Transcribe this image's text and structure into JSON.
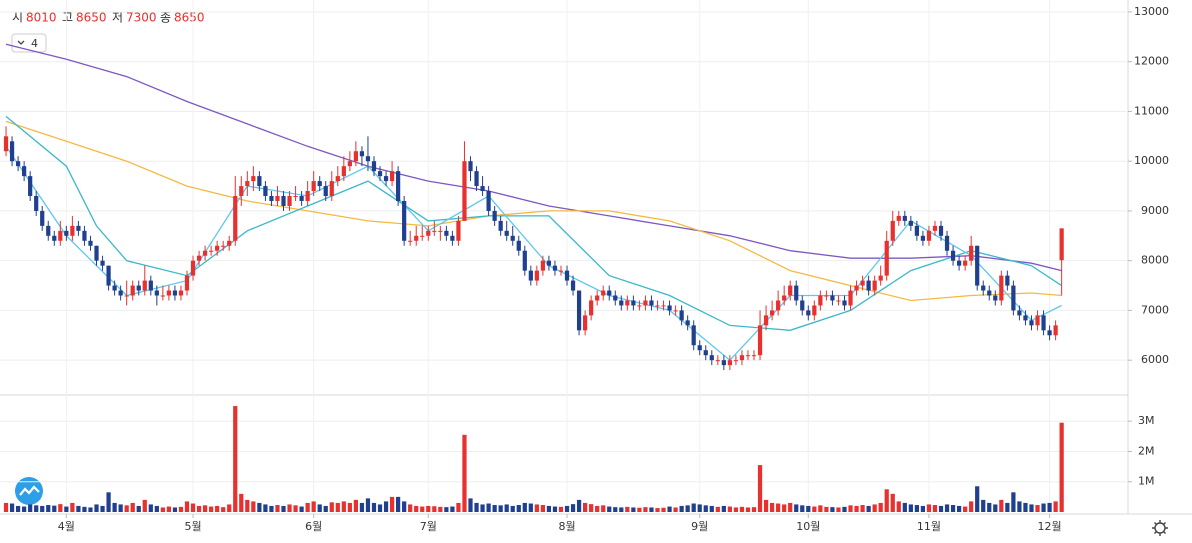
{
  "chart_data": {
    "type": "candlestick",
    "header": {
      "open_label": "시",
      "open": 8010,
      "high_label": "고",
      "high": 8650,
      "low_label": "저",
      "low": 7300,
      "close_label": "종",
      "close": 8650,
      "ma_count": 4
    },
    "up_color": "#e8312f",
    "down_color": "#1f3f8f",
    "ylim": [
      5300,
      13200
    ],
    "yticks": [
      6000,
      7000,
      8000,
      9000,
      10000,
      11000,
      12000,
      13000
    ],
    "volume_lim": [
      0,
      3700000
    ],
    "volume_ticks": [
      {
        "value": 1000000,
        "label": "1M"
      },
      {
        "value": 2000000,
        "label": "2M"
      },
      {
        "value": 3000000,
        "label": "3M"
      }
    ],
    "xlim": [
      -1,
      186
    ],
    "xticks": [
      {
        "value": 10,
        "label": "4월"
      },
      {
        "value": 31,
        "label": "5월"
      },
      {
        "value": 51,
        "label": "6월"
      },
      {
        "value": 70,
        "label": "7월"
      },
      {
        "value": 93,
        "label": "8월"
      },
      {
        "value": 115,
        "label": "9월"
      },
      {
        "value": 133,
        "label": "10월"
      },
      {
        "value": 153,
        "label": "11월"
      },
      {
        "value": 173,
        "label": "12월"
      }
    ],
    "grid": true,
    "candles": [
      [
        10200,
        10700,
        10100,
        10500,
        300000
      ],
      [
        10400,
        10500,
        9900,
        10000,
        280000
      ],
      [
        10000,
        10100,
        9800,
        9900,
        200000
      ],
      [
        9900,
        10000,
        9600,
        9700,
        180000
      ],
      [
        9700,
        9800,
        9200,
        9300,
        250000
      ],
      [
        9300,
        9400,
        8900,
        9000,
        220000
      ],
      [
        9000,
        9100,
        8600,
        8700,
        200000
      ],
      [
        8700,
        8800,
        8400,
        8500,
        230000
      ],
      [
        8500,
        8600,
        8300,
        8400,
        210000
      ],
      [
        8400,
        8800,
        8300,
        8600,
        260000
      ],
      [
        8600,
        8700,
        8400,
        8500,
        180000
      ],
      [
        8500,
        8900,
        8400,
        8700,
        300000
      ],
      [
        8700,
        8800,
        8500,
        8600,
        200000
      ],
      [
        8600,
        8700,
        8300,
        8400,
        170000
      ],
      [
        8400,
        8500,
        8200,
        8300,
        150000
      ],
      [
        8300,
        8300,
        7900,
        8000,
        250000
      ],
      [
        8000,
        8100,
        7800,
        7900,
        200000
      ],
      [
        7900,
        7900,
        7400,
        7500,
        650000
      ],
      [
        7500,
        7600,
        7300,
        7400,
        300000
      ],
      [
        7400,
        7500,
        7200,
        7300,
        250000
      ],
      [
        7300,
        7600,
        7100,
        7300,
        220000
      ],
      [
        7300,
        7600,
        7200,
        7500,
        300000
      ],
      [
        7500,
        7600,
        7300,
        7400,
        200000
      ],
      [
        7400,
        7900,
        7300,
        7600,
        400000
      ],
      [
        7600,
        7700,
        7300,
        7400,
        250000
      ],
      [
        7400,
        7500,
        7100,
        7300,
        200000
      ],
      [
        7300,
        7500,
        7200,
        7300,
        150000
      ],
      [
        7300,
        7500,
        7200,
        7400,
        180000
      ],
      [
        7400,
        7500,
        7200,
        7300,
        150000
      ],
      [
        7300,
        7500,
        7200,
        7400,
        170000
      ],
      [
        7400,
        7800,
        7300,
        7700,
        350000
      ],
      [
        7700,
        8100,
        7600,
        8000,
        280000
      ],
      [
        8000,
        8200,
        7900,
        8100,
        200000
      ],
      [
        8100,
        8300,
        8000,
        8200,
        220000
      ],
      [
        8200,
        8300,
        8100,
        8200,
        180000
      ],
      [
        8200,
        8400,
        8100,
        8300,
        200000
      ],
      [
        8300,
        8400,
        8200,
        8300,
        160000
      ],
      [
        8300,
        8500,
        8200,
        8400,
        250000
      ],
      [
        8400,
        9700,
        8300,
        9300,
        3500000
      ],
      [
        9300,
        9700,
        9100,
        9500,
        600000
      ],
      [
        9500,
        9800,
        9300,
        9600,
        400000
      ],
      [
        9600,
        9900,
        9400,
        9700,
        350000
      ],
      [
        9700,
        9800,
        9400,
        9500,
        300000
      ],
      [
        9500,
        9600,
        9200,
        9300,
        250000
      ],
      [
        9300,
        9400,
        9100,
        9200,
        200000
      ],
      [
        9200,
        9500,
        9100,
        9300,
        230000
      ],
      [
        9300,
        9400,
        9000,
        9100,
        200000
      ],
      [
        9100,
        9400,
        9000,
        9300,
        250000
      ],
      [
        9300,
        9500,
        9200,
        9300,
        220000
      ],
      [
        9300,
        9400,
        9100,
        9200,
        180000
      ],
      [
        9200,
        9600,
        9100,
        9400,
        300000
      ],
      [
        9400,
        9800,
        9300,
        9600,
        350000
      ],
      [
        9600,
        9700,
        9400,
        9500,
        250000
      ],
      [
        9500,
        9600,
        9200,
        9300,
        200000
      ],
      [
        9300,
        9800,
        9200,
        9600,
        320000
      ],
      [
        9600,
        9900,
        9500,
        9700,
        300000
      ],
      [
        9700,
        10100,
        9600,
        9900,
        350000
      ],
      [
        9900,
        10200,
        9800,
        10000,
        300000
      ],
      [
        10000,
        10400,
        9900,
        10200,
        400000
      ],
      [
        10200,
        10300,
        9900,
        10100,
        300000
      ],
      [
        10100,
        10500,
        9800,
        10000,
        450000
      ],
      [
        10000,
        10100,
        9700,
        9800,
        300000
      ],
      [
        9800,
        9900,
        9600,
        9700,
        250000
      ],
      [
        9700,
        9800,
        9500,
        9600,
        350000
      ],
      [
        9600,
        10000,
        9500,
        9800,
        500000
      ],
      [
        9800,
        9900,
        9100,
        9200,
        500000
      ],
      [
        9200,
        9300,
        8300,
        8400,
        350000
      ],
      [
        8400,
        8600,
        8300,
        8400,
        250000
      ],
      [
        8400,
        8700,
        8300,
        8500,
        200000
      ],
      [
        8500,
        8700,
        8400,
        8500,
        180000
      ],
      [
        8500,
        8700,
        8400,
        8600,
        200000
      ],
      [
        8600,
        8800,
        8500,
        8600,
        190000
      ],
      [
        8600,
        8700,
        8400,
        8600,
        170000
      ],
      [
        8600,
        8700,
        8400,
        8500,
        160000
      ],
      [
        8500,
        8600,
        8300,
        8400,
        180000
      ],
      [
        8400,
        8900,
        8300,
        8800,
        300000
      ],
      [
        8800,
        10400,
        8800,
        10000,
        2550000
      ],
      [
        10000,
        10100,
        9600,
        9800,
        450000
      ],
      [
        9800,
        9900,
        9400,
        9500,
        300000
      ],
      [
        9500,
        9700,
        9300,
        9400,
        250000
      ],
      [
        9400,
        9500,
        8900,
        9000,
        280000
      ],
      [
        9000,
        9100,
        8700,
        8800,
        230000
      ],
      [
        8800,
        8900,
        8500,
        8600,
        220000
      ],
      [
        8600,
        8800,
        8400,
        8500,
        250000
      ],
      [
        8500,
        8700,
        8300,
        8400,
        200000
      ],
      [
        8400,
        8500,
        8100,
        8200,
        230000
      ],
      [
        8200,
        8300,
        7700,
        7800,
        300000
      ],
      [
        7800,
        7900,
        7500,
        7600,
        280000
      ],
      [
        7600,
        7900,
        7500,
        7800,
        250000
      ],
      [
        7800,
        8100,
        7700,
        8000,
        230000
      ],
      [
        8000,
        8100,
        7800,
        7900,
        200000
      ],
      [
        7900,
        8000,
        7700,
        7800,
        180000
      ],
      [
        7800,
        7900,
        7700,
        7800,
        170000
      ],
      [
        7800,
        7900,
        7500,
        7600,
        200000
      ],
      [
        7600,
        7700,
        7300,
        7400,
        260000
      ],
      [
        7400,
        7400,
        6500,
        6600,
        400000
      ],
      [
        6600,
        7000,
        6500,
        6900,
        300000
      ],
      [
        6900,
        7300,
        6800,
        7200,
        260000
      ],
      [
        7200,
        7400,
        7100,
        7300,
        200000
      ],
      [
        7300,
        7500,
        7200,
        7400,
        220000
      ],
      [
        7400,
        7500,
        7200,
        7300,
        180000
      ],
      [
        7300,
        7400,
        7100,
        7200,
        160000
      ],
      [
        7200,
        7300,
        7000,
        7100,
        150000
      ],
      [
        7100,
        7300,
        7000,
        7200,
        170000
      ],
      [
        7200,
        7300,
        7000,
        7100,
        150000
      ],
      [
        7100,
        7200,
        7000,
        7100,
        140000
      ],
      [
        7100,
        7300,
        7000,
        7200,
        160000
      ],
      [
        7200,
        7300,
        7000,
        7100,
        150000
      ],
      [
        7100,
        7200,
        7000,
        7100,
        130000
      ],
      [
        7100,
        7200,
        7000,
        7100,
        140000
      ],
      [
        7100,
        7200,
        6900,
        7000,
        180000
      ],
      [
        7000,
        7100,
        6900,
        7000,
        150000
      ],
      [
        7000,
        7100,
        6700,
        6800,
        200000
      ],
      [
        6800,
        6900,
        6600,
        6700,
        220000
      ],
      [
        6700,
        6800,
        6200,
        6300,
        280000
      ],
      [
        6300,
        6400,
        6100,
        6200,
        250000
      ],
      [
        6200,
        6300,
        6000,
        6100,
        220000
      ],
      [
        6100,
        6200,
        5900,
        6000,
        200000
      ],
      [
        6000,
        6100,
        5900,
        6000,
        170000
      ],
      [
        6000,
        6100,
        5800,
        5900,
        200000
      ],
      [
        5900,
        6100,
        5800,
        6000,
        180000
      ],
      [
        6000,
        6100,
        5900,
        6000,
        150000
      ],
      [
        6000,
        6200,
        5900,
        6100,
        170000
      ],
      [
        6100,
        6200,
        6000,
        6100,
        150000
      ],
      [
        6100,
        6200,
        6000,
        6100,
        160000
      ],
      [
        6100,
        7000,
        6000,
        6700,
        1550000
      ],
      [
        6700,
        7100,
        6600,
        6900,
        400000
      ],
      [
        6900,
        7200,
        6800,
        7000,
        300000
      ],
      [
        7000,
        7400,
        6900,
        7200,
        280000
      ],
      [
        7200,
        7500,
        7100,
        7300,
        250000
      ],
      [
        7300,
        7600,
        7200,
        7500,
        300000
      ],
      [
        7500,
        7600,
        7100,
        7200,
        250000
      ],
      [
        7200,
        7300,
        6900,
        7000,
        220000
      ],
      [
        7000,
        7100,
        6800,
        6900,
        200000
      ],
      [
        6900,
        7200,
        6800,
        7100,
        180000
      ],
      [
        7100,
        7400,
        7000,
        7300,
        220000
      ],
      [
        7300,
        7400,
        7200,
        7300,
        170000
      ],
      [
        7300,
        7400,
        7100,
        7200,
        160000
      ],
      [
        7200,
        7300,
        7100,
        7200,
        150000
      ],
      [
        7200,
        7300,
        7000,
        7100,
        170000
      ],
      [
        7100,
        7500,
        7000,
        7400,
        220000
      ],
      [
        7400,
        7600,
        7300,
        7500,
        200000
      ],
      [
        7500,
        7700,
        7400,
        7600,
        230000
      ],
      [
        7600,
        7700,
        7300,
        7400,
        200000
      ],
      [
        7400,
        7700,
        7300,
        7600,
        250000
      ],
      [
        7600,
        7900,
        7500,
        7700,
        300000
      ],
      [
        7700,
        8600,
        7600,
        8400,
        750000
      ],
      [
        8400,
        9000,
        8300,
        8800,
        600000
      ],
      [
        8800,
        9000,
        8700,
        8900,
        350000
      ],
      [
        8900,
        9000,
        8700,
        8800,
        300000
      ],
      [
        8800,
        8900,
        8600,
        8700,
        250000
      ],
      [
        8700,
        8800,
        8400,
        8500,
        230000
      ],
      [
        8500,
        8600,
        8300,
        8400,
        200000
      ],
      [
        8400,
        8700,
        8300,
        8600,
        250000
      ],
      [
        8600,
        8800,
        8500,
        8700,
        230000
      ],
      [
        8700,
        8800,
        8400,
        8500,
        200000
      ],
      [
        8500,
        8600,
        8100,
        8200,
        250000
      ],
      [
        8200,
        8300,
        7900,
        8000,
        230000
      ],
      [
        8000,
        8100,
        7800,
        7900,
        200000
      ],
      [
        7900,
        8100,
        7800,
        8000,
        180000
      ],
      [
        8000,
        8500,
        7900,
        8300,
        350000
      ],
      [
        8300,
        8300,
        7400,
        7500,
        850000
      ],
      [
        7500,
        7600,
        7300,
        7400,
        400000
      ],
      [
        7400,
        7500,
        7200,
        7300,
        300000
      ],
      [
        7300,
        7400,
        7100,
        7200,
        250000
      ],
      [
        7200,
        7800,
        7100,
        7700,
        400000
      ],
      [
        7700,
        7800,
        7400,
        7500,
        300000
      ],
      [
        7500,
        7600,
        6900,
        7000,
        650000
      ],
      [
        7000,
        7100,
        6800,
        6900,
        350000
      ],
      [
        6900,
        7000,
        6700,
        6800,
        300000
      ],
      [
        6800,
        6900,
        6600,
        6700,
        250000
      ],
      [
        6700,
        7000,
        6600,
        6900,
        230000
      ],
      [
        6900,
        7000,
        6500,
        6600,
        280000
      ],
      [
        6600,
        6700,
        6400,
        6500,
        300000
      ],
      [
        6500,
        6800,
        6400,
        6700,
        350000
      ],
      [
        8010,
        8650,
        7300,
        8650,
        2950000
      ]
    ],
    "series": [
      {
        "color": "#7e57c2",
        "x": [
          0,
          10,
          20,
          30,
          40,
          50,
          60,
          70,
          80,
          90,
          100,
          110,
          120,
          130,
          140,
          150,
          160,
          170,
          175
        ],
        "values": [
          12350,
          12050,
          11700,
          11200,
          10750,
          10300,
          9900,
          9600,
          9400,
          9100,
          8900,
          8700,
          8500,
          8200,
          8050,
          8050,
          8100,
          7950,
          7800
        ]
      },
      {
        "color": "#f5b942",
        "x": [
          0,
          10,
          20,
          30,
          40,
          50,
          60,
          70,
          80,
          90,
          100,
          110,
          120,
          130,
          140,
          150,
          160,
          170,
          175
        ],
        "values": [
          10800,
          10400,
          10000,
          9500,
          9200,
          9000,
          8800,
          8700,
          8900,
          9000,
          9000,
          8800,
          8400,
          7800,
          7500,
          7200,
          7300,
          7350,
          7300
        ]
      },
      {
        "color": "#3bb8c9",
        "x": [
          0,
          10,
          15,
          20,
          30,
          40,
          50,
          60,
          70,
          80,
          90,
          100,
          110,
          120,
          130,
          140,
          150,
          160,
          170,
          175
        ],
        "values": [
          10900,
          9900,
          8700,
          8000,
          7700,
          8600,
          9100,
          9600,
          8800,
          8900,
          8900,
          7700,
          7300,
          6700,
          6600,
          7000,
          7800,
          8200,
          7900,
          7500
        ]
      },
      {
        "color": "#5fc8ee",
        "x": [
          0,
          10,
          20,
          30,
          40,
          50,
          60,
          70,
          80,
          90,
          100,
          110,
          120,
          130,
          140,
          150,
          160,
          170,
          175
        ],
        "values": [
          10300,
          8500,
          7300,
          7600,
          9500,
          9300,
          9900,
          8600,
          9300,
          7900,
          7300,
          7000,
          6000,
          7300,
          7300,
          8800,
          8100,
          6800,
          7100
        ]
      }
    ]
  }
}
